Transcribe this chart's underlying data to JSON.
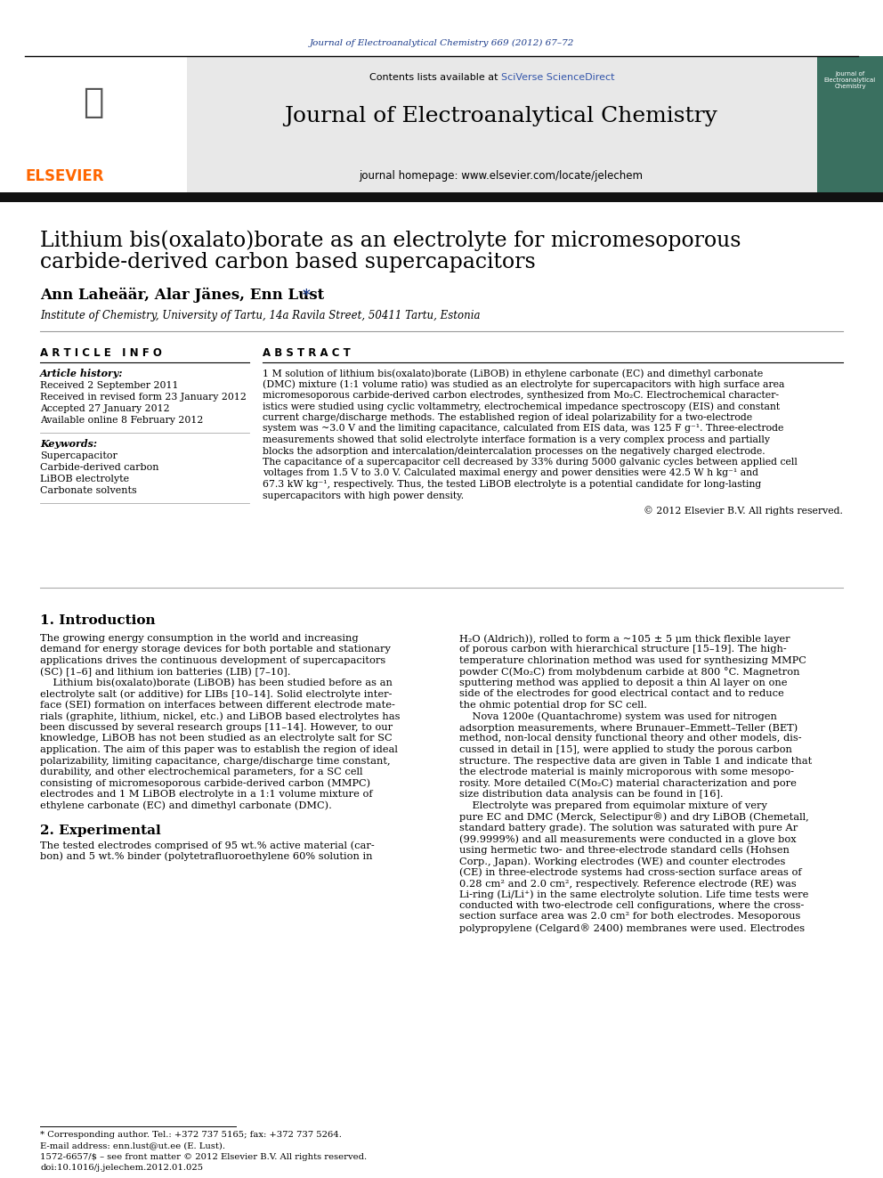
{
  "journal_ref": "Journal of Electroanalytical Chemistry 669 (2012) 67–72",
  "journal_name": "Journal of Electroanalytical Chemistry",
  "contents_line": "Contents lists available at SciVerse ScienceDirect",
  "journal_homepage": "journal homepage: www.elsevier.com/locate/jelechem",
  "title_line1": "Lithium bis(oxalato)borate as an electrolyte for micromesoporous",
  "title_line2": "carbide-derived carbon based supercapacitors",
  "authors_plain": "Ann Laheäär, Alar Jänes, Enn Lust ",
  "affiliation": "Institute of Chemistry, University of Tartu, 14a Ravila Street, 50411 Tartu, Estonia",
  "article_info_label": "A R T I C L E   I N F O",
  "abstract_label": "A B S T R A C T",
  "article_history_label": "Article history:",
  "received": "Received 2 September 2011",
  "received_revised": "Received in revised form 23 January 2012",
  "accepted": "Accepted 27 January 2012",
  "available": "Available online 8 February 2012",
  "keywords_label": "Keywords:",
  "keywords": [
    "Supercapacitor",
    "Carbide-derived carbon",
    "LiBOB electrolyte",
    "Carbonate solvents"
  ],
  "abstract_lines": [
    "1 M solution of lithium bis(oxalato)borate (LiBOB) in ethylene carbonate (EC) and dimethyl carbonate",
    "(DMC) mixture (1:1 volume ratio) was studied as an electrolyte for supercapacitors with high surface area",
    "micromesoporous carbide-derived carbon electrodes, synthesized from Mo₂C. Electrochemical character-",
    "istics were studied using cyclic voltammetry, electrochemical impedance spectroscopy (EIS) and constant",
    "current charge/discharge methods. The established region of ideal polarizability for a two-electrode",
    "system was ~3.0 V and the limiting capacitance, calculated from EIS data, was 125 F g⁻¹. Three-electrode",
    "measurements showed that solid electrolyte interface formation is a very complex process and partially",
    "blocks the adsorption and intercalation/deintercalation processes on the negatively charged electrode.",
    "The capacitance of a supercapacitor cell decreased by 33% during 5000 galvanic cycles between applied cell",
    "voltages from 1.5 V to 3.0 V. Calculated maximal energy and power densities were 42.5 W h kg⁻¹ and",
    "67.3 kW kg⁻¹, respectively. Thus, the tested LiBOB electrolyte is a potential candidate for long-lasting",
    "supercapacitors with high power density."
  ],
  "copyright": "© 2012 Elsevier B.V. All rights reserved.",
  "intro_heading": "1. Introduction",
  "intro_left_lines": [
    "The growing energy consumption in the world and increasing",
    "demand for energy storage devices for both portable and stationary",
    "applications drives the continuous development of supercapacitors",
    "(SC) [1–6] and lithium ion batteries (LIB) [7–10].",
    "    Lithium bis(oxalato)borate (LiBOB) has been studied before as an",
    "electrolyte salt (or additive) for LIBs [10–14]. Solid electrolyte inter-",
    "face (SEI) formation on interfaces between different electrode mate-",
    "rials (graphite, lithium, nickel, etc.) and LiBOB based electrolytes has",
    "been discussed by several research groups [11–14]. However, to our",
    "knowledge, LiBOB has not been studied as an electrolyte salt for SC",
    "application. The aim of this paper was to establish the region of ideal",
    "polarizability, limiting capacitance, charge/discharge time constant,",
    "durability, and other electrochemical parameters, for a SC cell",
    "consisting of micromesoporous carbide-derived carbon (MMPC)",
    "electrodes and 1 M LiBOB electrolyte in a 1:1 volume mixture of",
    "ethylene carbonate (EC) and dimethyl carbonate (DMC)."
  ],
  "intro_right_lines": [
    "H₂O (Aldrich)), rolled to form a ~105 ± 5 μm thick flexible layer",
    "of porous carbon with hierarchical structure [15–19]. The high-",
    "temperature chlorination method was used for synthesizing MMPC",
    "powder C(Mo₂C) from molybdenum carbide at 800 °C. Magnetron",
    "sputtering method was applied to deposit a thin Al layer on one",
    "side of the electrodes for good electrical contact and to reduce",
    "the ohmic potential drop for SC cell.",
    "    Nova 1200e (Quantachrome) system was used for nitrogen",
    "adsorption measurements, where Brunauer–Emmett–Teller (BET)",
    "method, non-local density functional theory and other models, dis-",
    "cussed in detail in [15], were applied to study the porous carbon",
    "structure. The respective data are given in Table 1 and indicate that",
    "the electrode material is mainly microporous with some mesopo-",
    "rosity. More detailed C(Mo₂C) material characterization and pore",
    "size distribution data analysis can be found in [16].",
    "    Electrolyte was prepared from equimolar mixture of very",
    "pure EC and DMC (Merck, Selectipur®) and dry LiBOB (Chemetall,",
    "standard battery grade). The solution was saturated with pure Ar",
    "(99.9999%) and all measurements were conducted in a glove box",
    "using hermetic two- and three-electrode standard cells (Hohsen",
    "Corp., Japan). Working electrodes (WE) and counter electrodes",
    "(CE) in three-electrode systems had cross-section surface areas of",
    "0.28 cm² and 2.0 cm², respectively. Reference electrode (RE) was",
    "Li-ring (Li/Li⁺) in the same electrolyte solution. Life time tests were",
    "conducted with two-electrode cell configurations, where the cross-",
    "section surface area was 2.0 cm² for both electrodes. Mesoporous",
    "polypropylene (Celgard® 2400) membranes were used. Electrodes"
  ],
  "exp_heading": "2. Experimental",
  "exp_left_lines": [
    "The tested electrodes comprised of 95 wt.% active material (car-",
    "bon) and 5 wt.% binder (polytetrafluoroethylene 60% solution in"
  ],
  "footer_star": "* Corresponding author. Tel.: +372 737 5165; fax: +372 737 5264.",
  "footer_email": "E-mail address: enn.lust@ut.ee (E. Lust).",
  "footer_issn": "1572-6657/$ – see front matter © 2012 Elsevier B.V. All rights reserved.",
  "footer_doi": "doi:10.1016/j.jelechem.2012.01.025",
  "elsevier_color": "#FF6600",
  "link_color": "#1a3a8a",
  "sciverse_color": "#3355aa",
  "header_bg": "#e8e8e8",
  "dark_bar_color": "#111111",
  "sidebar_color": "#3a7060"
}
